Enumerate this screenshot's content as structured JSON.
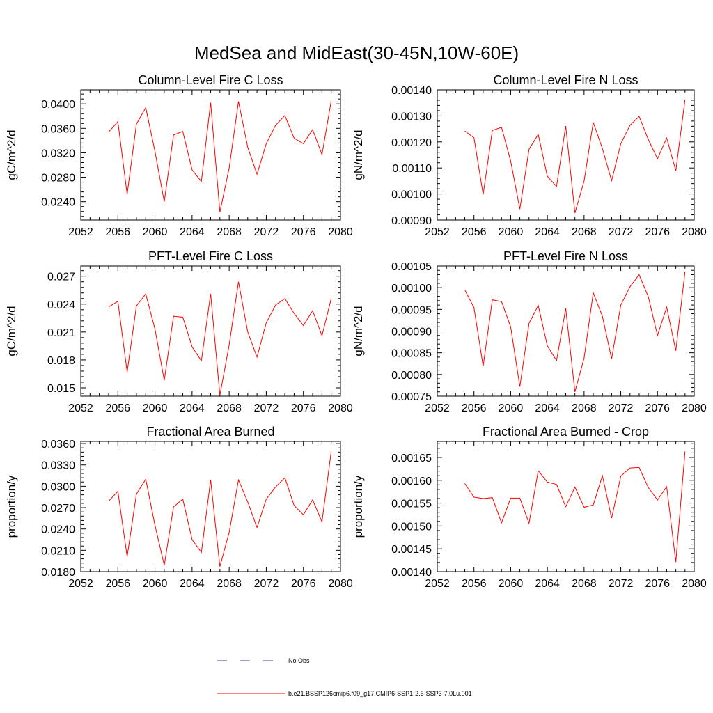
{
  "figure": {
    "title": "MedSea and MidEast(30-45N,10W-60E)"
  },
  "colors": {
    "series": "#ff0000",
    "obs": "#4a4aa8",
    "axis": "#000000"
  },
  "legend": {
    "placement": "bottom-center",
    "entries": [
      {
        "label": "No Obs",
        "style": "dashed",
        "color": "#4a4aa8"
      },
      {
        "label": "b.e21.BSSP126cmip6.f09_g17.CMIP6-SSP1-2.6-SSP3-7.0Lu.001",
        "style": "solid",
        "color": "#ff0000"
      }
    ]
  },
  "chart_data": [
    {
      "type": "line",
      "title": "Column-Level Fire C Loss",
      "xlabel": "",
      "ylabel": "gC/m^2/d",
      "xlim": [
        2052,
        2080
      ],
      "ylim": [
        0.021,
        0.0423
      ],
      "xticks": [
        "2052",
        "2056",
        "2060",
        "2064",
        "2068",
        "2072",
        "2076",
        "2080"
      ],
      "yticks": [
        "0.0240",
        "0.0280",
        "0.0320",
        "0.0360",
        "0.0400"
      ],
      "grid": false,
      "x": [
        2055,
        2056,
        2057,
        2058,
        2059,
        2060,
        2061,
        2062,
        2063,
        2064,
        2065,
        2066,
        2067,
        2068,
        2069,
        2070,
        2071,
        2072,
        2073,
        2074,
        2075,
        2076,
        2077,
        2078,
        2079
      ],
      "series": [
        {
          "name": "b.e21.BSSP126cmip6.f09_g17.CMIP6-SSP1-2.6-SSP3-7.0Lu.001",
          "values": [
            0.0354,
            0.0371,
            0.0252,
            0.0367,
            0.0394,
            0.0322,
            0.024,
            0.0349,
            0.0355,
            0.0292,
            0.0273,
            0.0402,
            0.0223,
            0.0295,
            0.0404,
            0.0329,
            0.0285,
            0.0335,
            0.0365,
            0.0381,
            0.0344,
            0.0335,
            0.0358,
            0.0317,
            0.0405
          ]
        }
      ]
    },
    {
      "type": "line",
      "title": "Column-Level Fire N Loss",
      "xlabel": "",
      "ylabel": "gN/m^2/d",
      "xlim": [
        2052,
        2080
      ],
      "ylim": [
        0.0009,
        0.0014
      ],
      "xticks": [
        "2052",
        "2056",
        "2060",
        "2064",
        "2068",
        "2072",
        "2076",
        "2080"
      ],
      "yticks": [
        "0.00090",
        "0.00100",
        "0.00110",
        "0.00120",
        "0.00130",
        "0.00140"
      ],
      "grid": false,
      "x": [
        2055,
        2056,
        2057,
        2058,
        2059,
        2060,
        2061,
        2062,
        2063,
        2064,
        2065,
        2066,
        2067,
        2068,
        2069,
        2070,
        2071,
        2072,
        2073,
        2074,
        2075,
        2076,
        2077,
        2078,
        2079
      ],
      "series": [
        {
          "name": "b.e21.BSSP126cmip6.f09_g17.CMIP6-SSP1-2.6-SSP3-7.0Lu.001",
          "values": [
            0.001242,
            0.001216,
            0.000998,
            0.001244,
            0.001256,
            0.001127,
            0.000942,
            0.001172,
            0.001229,
            0.001068,
            0.001029,
            0.001261,
            0.000927,
            0.00105,
            0.001275,
            0.001174,
            0.001051,
            0.001193,
            0.001264,
            0.001298,
            0.001209,
            0.001135,
            0.001215,
            0.001089,
            0.001362
          ]
        }
      ]
    },
    {
      "type": "line",
      "title": "PFT-Level Fire C Loss",
      "xlabel": "",
      "ylabel": "gC/m^2/d",
      "xlim": [
        2052,
        2080
      ],
      "ylim": [
        0.0141,
        0.0281
      ],
      "xticks": [
        "2052",
        "2056",
        "2060",
        "2064",
        "2068",
        "2072",
        "2076",
        "2080"
      ],
      "yticks": [
        "0.015",
        "0.018",
        "0.021",
        "0.024",
        "0.027"
      ],
      "grid": false,
      "x": [
        2055,
        2056,
        2057,
        2058,
        2059,
        2060,
        2061,
        2062,
        2063,
        2064,
        2065,
        2066,
        2067,
        2068,
        2069,
        2070,
        2071,
        2072,
        2073,
        2074,
        2075,
        2076,
        2077,
        2078,
        2079
      ],
      "series": [
        {
          "name": "b.e21.BSSP126cmip6.f09_g17.CMIP6-SSP1-2.6-SSP3-7.0Lu.001",
          "values": [
            0.0237,
            0.0243,
            0.0167,
            0.0238,
            0.0251,
            0.0213,
            0.0158,
            0.0227,
            0.0226,
            0.0194,
            0.0179,
            0.0251,
            0.0142,
            0.0196,
            0.0264,
            0.021,
            0.0183,
            0.022,
            0.0239,
            0.0246,
            0.023,
            0.0217,
            0.0233,
            0.0206,
            0.0246
          ]
        }
      ]
    },
    {
      "type": "line",
      "title": "PFT-Level Fire N Loss",
      "xlabel": "",
      "ylabel": "gN/m^2/d",
      "xlim": [
        2052,
        2080
      ],
      "ylim": [
        0.00075,
        0.00105
      ],
      "xticks": [
        "2052",
        "2056",
        "2060",
        "2064",
        "2068",
        "2072",
        "2076",
        "2080"
      ],
      "yticks": [
        "0.00075",
        "0.00080",
        "0.00085",
        "0.00090",
        "0.00095",
        "0.00100",
        "0.00105"
      ],
      "grid": false,
      "x": [
        2055,
        2056,
        2057,
        2058,
        2059,
        2060,
        2061,
        2062,
        2063,
        2064,
        2065,
        2066,
        2067,
        2068,
        2069,
        2070,
        2071,
        2072,
        2073,
        2074,
        2075,
        2076,
        2077,
        2078,
        2079
      ],
      "series": [
        {
          "name": "b.e21.BSSP126cmip6.f09_g17.CMIP6-SSP1-2.6-SSP3-7.0Lu.001",
          "values": [
            0.000995,
            0.000954,
            0.000819,
            0.000972,
            0.000968,
            0.00091,
            0.000772,
            0.000918,
            0.000959,
            0.000866,
            0.000832,
            0.000952,
            0.00076,
            0.000838,
            0.000988,
            0.000934,
            0.000836,
            0.00096,
            0.001002,
            0.00103,
            0.000979,
            0.00089,
            0.000955,
            0.000855,
            0.001037
          ]
        }
      ]
    },
    {
      "type": "line",
      "title": "Fractional Area Burned",
      "xlabel": "",
      "ylabel": "proportion/y",
      "xlim": [
        2052,
        2080
      ],
      "ylim": [
        0.018,
        0.0363
      ],
      "xticks": [
        "2052",
        "2056",
        "2060",
        "2064",
        "2068",
        "2072",
        "2076",
        "2080"
      ],
      "yticks": [
        "0.0180",
        "0.0210",
        "0.0240",
        "0.0270",
        "0.0300",
        "0.0330",
        "0.0360"
      ],
      "grid": false,
      "x": [
        2055,
        2056,
        2057,
        2058,
        2059,
        2060,
        2061,
        2062,
        2063,
        2064,
        2065,
        2066,
        2067,
        2068,
        2069,
        2070,
        2071,
        2072,
        2073,
        2074,
        2075,
        2076,
        2077,
        2078,
        2079
      ],
      "series": [
        {
          "name": "b.e21.BSSP126cmip6.f09_g17.CMIP6-SSP1-2.6-SSP3-7.0Lu.001",
          "values": [
            0.0279,
            0.0293,
            0.0201,
            0.0289,
            0.031,
            0.0245,
            0.0189,
            0.0271,
            0.0282,
            0.0225,
            0.0207,
            0.0309,
            0.0187,
            0.0235,
            0.0309,
            0.0278,
            0.0242,
            0.0282,
            0.0299,
            0.0312,
            0.0273,
            0.026,
            0.0281,
            0.025,
            0.0349
          ]
        }
      ]
    },
    {
      "type": "line",
      "title": "Fractional Area Burned - Crop",
      "xlabel": "",
      "ylabel": "proportion/y",
      "xlim": [
        2052,
        2080
      ],
      "ylim": [
        0.0014,
        0.001685
      ],
      "xticks": [
        "2052",
        "2056",
        "2060",
        "2064",
        "2068",
        "2072",
        "2076",
        "2080"
      ],
      "yticks": [
        "0.00140",
        "0.00145",
        "0.00150",
        "0.00155",
        "0.00160",
        "0.00165"
      ],
      "grid": false,
      "x": [
        2055,
        2056,
        2057,
        2058,
        2059,
        2060,
        2061,
        2062,
        2063,
        2064,
        2065,
        2066,
        2067,
        2068,
        2069,
        2070,
        2071,
        2072,
        2073,
        2074,
        2075,
        2076,
        2077,
        2078,
        2079
      ],
      "series": [
        {
          "name": "b.e21.BSSP126cmip6.f09_g17.CMIP6-SSP1-2.6-SSP3-7.0Lu.001",
          "values": [
            0.001593,
            0.001563,
            0.00156,
            0.001562,
            0.001507,
            0.001561,
            0.001561,
            0.001506,
            0.001621,
            0.001596,
            0.001591,
            0.001542,
            0.001585,
            0.001541,
            0.001546,
            0.00161,
            0.001517,
            0.001609,
            0.001627,
            0.001628,
            0.001584,
            0.001557,
            0.001586,
            0.001421,
            0.001663
          ]
        }
      ]
    }
  ]
}
